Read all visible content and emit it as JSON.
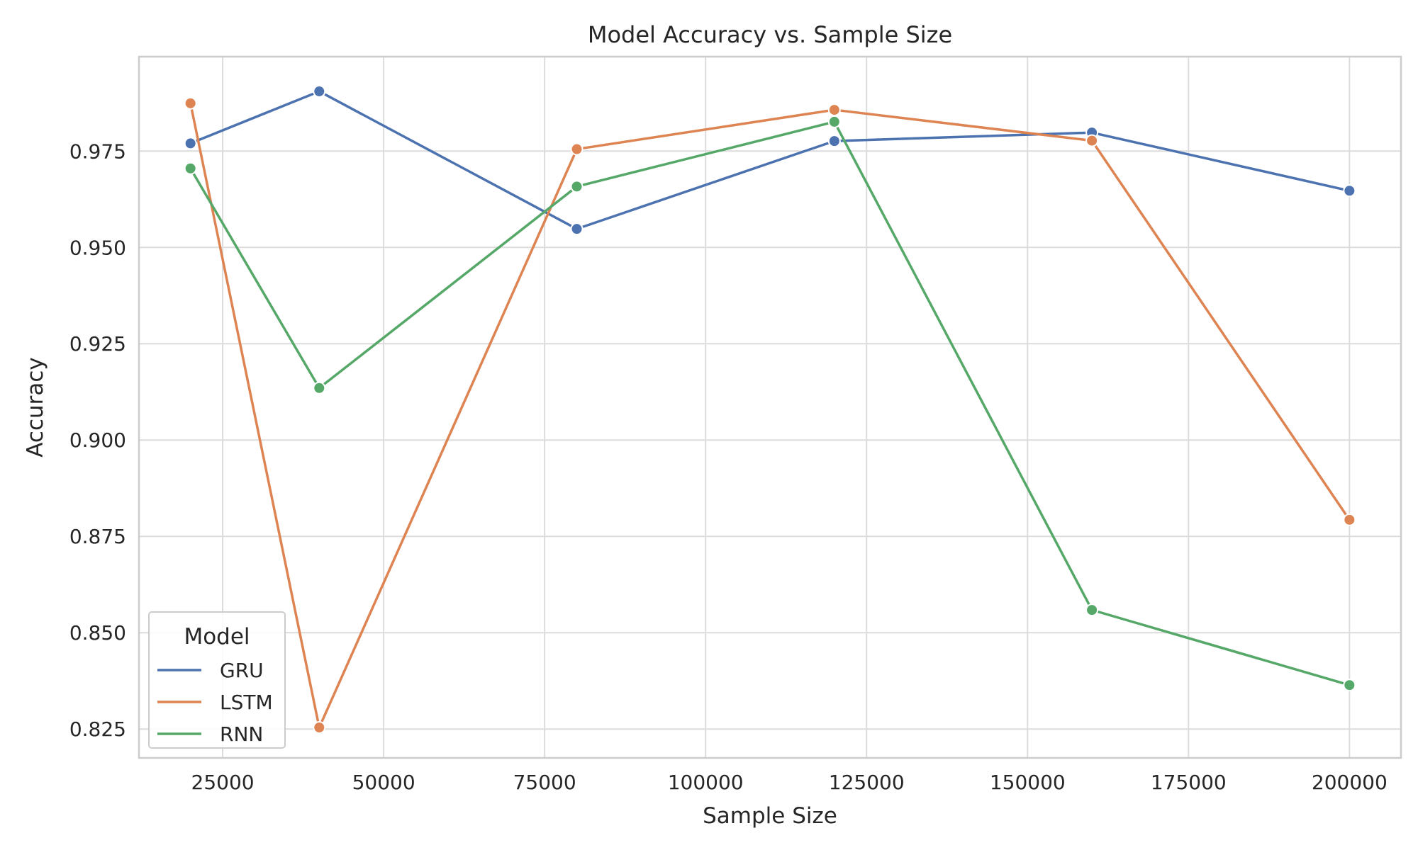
{
  "chart_data": {
    "type": "line",
    "title": "Model Accuracy vs. Sample Size",
    "xlabel": "Sample Size",
    "ylabel": "Accuracy",
    "x": [
      20000,
      40000,
      80000,
      120000,
      160000,
      200000
    ],
    "xlim": [
      12000,
      208000
    ],
    "ylim": [
      0.8175,
      0.9995
    ],
    "xticks": [
      25000,
      50000,
      75000,
      100000,
      125000,
      150000,
      175000,
      200000
    ],
    "yticks": [
      0.825,
      0.85,
      0.875,
      0.9,
      0.925,
      0.95,
      0.975
    ],
    "xtick_labels": [
      "25000",
      "50000",
      "75000",
      "100000",
      "125000",
      "150000",
      "175000",
      "200000"
    ],
    "ytick_labels": [
      "0.825",
      "0.850",
      "0.875",
      "0.900",
      "0.925",
      "0.950",
      "0.975"
    ],
    "grid": true,
    "legend": {
      "title": "Model",
      "placement": "lower-left"
    },
    "series": [
      {
        "name": "GRU",
        "color": "#4c72b0",
        "values": [
          0.977,
          0.9905,
          0.9548,
          0.9776,
          0.9798,
          0.9647
        ]
      },
      {
        "name": "LSTM",
        "color": "#dd8452",
        "values": [
          0.9874,
          0.8254,
          0.9755,
          0.9857,
          0.9777,
          0.8793
        ]
      },
      {
        "name": "RNN",
        "color": "#55a868",
        "values": [
          0.9705,
          0.9135,
          0.9658,
          0.9826,
          0.8559,
          0.8364
        ]
      }
    ]
  }
}
